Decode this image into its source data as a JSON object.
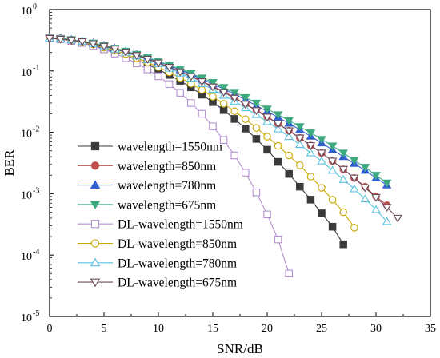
{
  "chart_data": {
    "type": "line",
    "title": "",
    "xlabel": "SNR/dB",
    "ylabel": "BER",
    "xlim": [
      0,
      35
    ],
    "ylim": [
      1e-05,
      1
    ],
    "yscale": "log",
    "grid": false,
    "legend_position": "bottom-left",
    "x_ticks": [
      0,
      5,
      10,
      15,
      20,
      25,
      30,
      35
    ],
    "y_ticks": [
      {
        "value": 1e-05,
        "base": "10",
        "exp": "-5"
      },
      {
        "value": 0.0001,
        "base": "10",
        "exp": "-4"
      },
      {
        "value": 0.001,
        "base": "10",
        "exp": "-3"
      },
      {
        "value": 0.01,
        "base": "10",
        "exp": "-2"
      },
      {
        "value": 0.1,
        "base": "10",
        "exp": "-1"
      },
      {
        "value": 1,
        "base": "10",
        "exp": "0"
      }
    ],
    "x": [
      0,
      1,
      2,
      3,
      4,
      5,
      6,
      7,
      8,
      9,
      10,
      11,
      12,
      13,
      14,
      15,
      16,
      17,
      18,
      19,
      20,
      21,
      22,
      23,
      24,
      25,
      26,
      27,
      28,
      29,
      30,
      31,
      32,
      33,
      34,
      35
    ],
    "series": [
      {
        "name": "wavelength=1550nm",
        "color": "#3a3a3a",
        "marker": "square",
        "filled": true,
        "values": [
          0.34,
          0.33,
          0.31,
          0.29,
          0.26,
          0.23,
          0.205,
          0.178,
          0.152,
          0.128,
          0.105,
          0.086,
          0.069,
          0.054,
          0.041,
          0.031,
          0.023,
          0.0165,
          0.0115,
          0.0078,
          0.0052,
          0.0033,
          0.0021,
          0.0013,
          0.0008,
          0.00048,
          0.00029,
          0.00015,
          null,
          null,
          null,
          null,
          null,
          null,
          null,
          null
        ],
        "x_offset": 4
      },
      {
        "name": "wavelength=850nm",
        "color": "#c0504d",
        "marker": "circle",
        "filled": true,
        "values": [
          0.35,
          0.34,
          0.325,
          0.305,
          0.28,
          0.255,
          0.23,
          0.205,
          0.18,
          0.158,
          0.136,
          0.116,
          0.098,
          0.082,
          0.068,
          0.056,
          0.046,
          0.037,
          0.029,
          0.023,
          0.018,
          0.0138,
          0.0106,
          0.0081,
          0.0061,
          0.0046,
          0.0034,
          0.0025,
          0.0018,
          0.0013,
          0.0009,
          0.00065,
          null,
          null,
          null,
          null
        ],
        "x_offset": 5
      },
      {
        "name": "wavelength=780nm",
        "color": "#3060d0",
        "marker": "triangle-up",
        "filled": true,
        "values": [
          0.35,
          0.34,
          0.325,
          0.305,
          0.285,
          0.26,
          0.235,
          0.21,
          0.186,
          0.163,
          0.142,
          0.122,
          0.104,
          0.088,
          0.074,
          0.061,
          0.051,
          0.042,
          0.034,
          0.027,
          0.022,
          0.0175,
          0.014,
          0.011,
          0.0086,
          0.0067,
          0.0052,
          0.004,
          0.0031,
          0.0024,
          0.0018,
          0.00138,
          null,
          null,
          null,
          null
        ],
        "x_offset": 4
      },
      {
        "name": "wavelength=675nm",
        "color": "#3daa7e",
        "marker": "triangle-down",
        "filled": true,
        "values": [
          0.35,
          0.34,
          0.325,
          0.305,
          0.285,
          0.26,
          0.235,
          0.21,
          0.187,
          0.165,
          0.144,
          0.124,
          0.107,
          0.091,
          0.077,
          0.065,
          0.054,
          0.045,
          0.037,
          0.03,
          0.024,
          0.0194,
          0.0156,
          0.0124,
          0.0098,
          0.0077,
          0.006,
          0.0046,
          0.0035,
          0.0027,
          0.002,
          0.0015,
          null,
          null,
          null,
          null
        ],
        "x_offset": 3
      },
      {
        "name": "DL-wavelength=1550nm",
        "color": "#b58fd0",
        "marker": "square",
        "filled": false,
        "values": [
          0.34,
          0.33,
          0.31,
          0.285,
          0.255,
          0.225,
          0.192,
          0.162,
          0.133,
          0.106,
          0.082,
          0.061,
          0.044,
          0.03,
          0.02,
          0.0125,
          0.0075,
          0.0042,
          0.0022,
          0.00105,
          0.00046,
          0.00018,
          5e-05,
          null,
          null,
          null,
          null,
          null,
          null,
          null,
          null,
          null,
          null,
          null,
          null,
          null
        ],
        "x_offset": 7
      },
      {
        "name": "DL-wavelength=850nm",
        "color": "#c8a800",
        "marker": "circle",
        "filled": false,
        "values": [
          0.34,
          0.33,
          0.315,
          0.295,
          0.27,
          0.24,
          0.215,
          0.188,
          0.162,
          0.138,
          0.115,
          0.095,
          0.077,
          0.062,
          0.049,
          0.038,
          0.0292,
          0.022,
          0.0163,
          0.0118,
          0.0085,
          0.006,
          0.0042,
          0.0029,
          0.0019,
          0.00125,
          0.0008,
          0.0005,
          0.00028,
          null,
          null,
          null,
          null,
          null,
          null,
          null
        ],
        "x_offset": 4
      },
      {
        "name": "DL-wavelength=780nm",
        "color": "#58c0e0",
        "marker": "triangle-up",
        "filled": false,
        "values": [
          0.34,
          0.33,
          0.318,
          0.3,
          0.276,
          0.25,
          0.225,
          0.2,
          0.175,
          0.152,
          0.13,
          0.11,
          0.092,
          0.076,
          0.062,
          0.05,
          0.04,
          0.032,
          0.025,
          0.0194,
          0.0149,
          0.0113,
          0.0085,
          0.0063,
          0.0046,
          0.0034,
          0.0024,
          0.0017,
          0.0012,
          0.00082,
          0.00055,
          0.00035,
          null,
          null,
          null,
          null
        ],
        "x_offset": 3
      },
      {
        "name": "DL-wavelength=675nm",
        "color": "#6a4a5a",
        "marker": "triangle-down",
        "filled": false,
        "values": [
          0.34,
          0.33,
          0.318,
          0.3,
          0.278,
          0.253,
          0.228,
          0.203,
          0.179,
          0.156,
          0.135,
          0.115,
          0.097,
          0.081,
          0.067,
          0.055,
          0.045,
          0.036,
          0.0287,
          0.0226,
          0.0177,
          0.0138,
          0.0106,
          0.0081,
          0.0061,
          0.0046,
          0.0034,
          0.0025,
          0.0018,
          0.00125,
          0.00087,
          0.0006,
          0.0004,
          null,
          null,
          null
        ],
        "x_offset": 2
      }
    ]
  }
}
